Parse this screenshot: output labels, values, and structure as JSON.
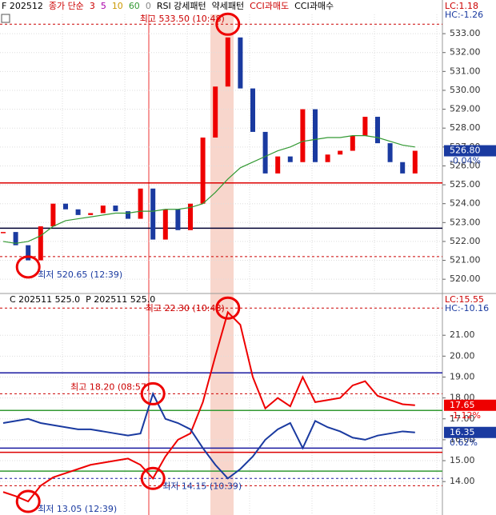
{
  "chart_data": [
    {
      "type": "candle",
      "header": [
        "F 202512",
        "종가 단순",
        "3",
        "5",
        "10",
        "60",
        "0",
        "RSI 강세패턴",
        "약세패턴",
        "CCI과매도",
        "CCI과매수"
      ],
      "header_colors": [
        "#000",
        "#c00",
        "#c00",
        "#a0a",
        "#c90",
        "#393",
        "#888",
        "#000",
        "#000",
        "#c00",
        "#000"
      ],
      "corner": [
        "LC:1.18",
        "HC:-1.26"
      ],
      "ylim": [
        519.33,
        534.02
      ],
      "yticks": [
        {
          "value": 520,
          "label": "520.00"
        },
        {
          "value": 521,
          "label": "521.00"
        },
        {
          "value": 522,
          "label": "522.00"
        },
        {
          "value": 523,
          "label": "523.00"
        },
        {
          "value": 524,
          "label": "524.00"
        },
        {
          "value": 525,
          "label": "525.00"
        },
        {
          "value": 526,
          "label": "526.00"
        },
        {
          "value": 527,
          "label": "527.00"
        },
        {
          "value": 528,
          "label": "528.00"
        },
        {
          "value": 529,
          "label": "529.00"
        },
        {
          "value": 530,
          "label": "530.00"
        },
        {
          "value": 531,
          "label": "531.00"
        },
        {
          "value": 532,
          "label": "532.00"
        },
        {
          "value": 533,
          "label": "533.00"
        }
      ],
      "hlines": [
        {
          "value": 533.5,
          "color": "#c00",
          "dash": true
        },
        {
          "value": 525.1,
          "color": "#d00",
          "dash": false
        },
        {
          "value": 522.7,
          "color": "#003",
          "dash": false
        },
        {
          "value": 521.2,
          "color": "#c00",
          "dash": true
        }
      ],
      "series": [
        {
          "name": "종가",
          "color": "#e00",
          "down_color": "#1a3aa0",
          "values": [
            522.5,
            521.8,
            521.0,
            522.8,
            524.0,
            523.7,
            523.4,
            523.5,
            523.9,
            523.6,
            523.2,
            524.8,
            522.1,
            523.7,
            522.6,
            524.0,
            527.5,
            530.2,
            532.8,
            530.1,
            527.8,
            525.6,
            526.5,
            526.2,
            529.0,
            526.2,
            526.6,
            526.8,
            527.6,
            528.6,
            527.2,
            526.2,
            525.6,
            526.8
          ]
        },
        {
          "name": "60",
          "color": "#393",
          "values": [
            522.0,
            521.9,
            522.0,
            522.3,
            522.8,
            523.1,
            523.2,
            523.3,
            523.4,
            523.5,
            523.5,
            523.6,
            523.6,
            523.7,
            523.7,
            523.8,
            524.0,
            524.6,
            525.3,
            525.9,
            526.2,
            526.5,
            526.8,
            527.0,
            527.3,
            527.4,
            527.5,
            527.5,
            527.6,
            527.6,
            527.5,
            527.3,
            527.1,
            527.0
          ]
        }
      ],
      "annotations": [
        {
          "text": "최고 533.50 (10:48)",
          "index": 18,
          "value": 533.5
        },
        {
          "text": "최저 520.65 (12:39)",
          "index": 2,
          "value": 520.65
        }
      ],
      "tags": [
        {
          "value": 526.8,
          "label": "526.80",
          "sub": "-0.04%",
          "color": "#1a3aa0"
        }
      ]
    },
    {
      "type": "line",
      "header": [
        "C 202511 525.0",
        "P 202511 525.0"
      ],
      "header_colors": [
        "#000",
        "#000"
      ],
      "corner": [
        "LC:15.55",
        "HC:-10.16"
      ],
      "ylim": [
        12.4,
        22.5
      ],
      "yticks": [
        {
          "value": 14,
          "label": "14.00"
        },
        {
          "value": 15,
          "label": "15.00"
        },
        {
          "value": 16,
          "label": "16.00"
        },
        {
          "value": 17,
          "label": "17.00"
        },
        {
          "value": 18,
          "label": "18.00"
        },
        {
          "value": 19,
          "label": "19.00"
        },
        {
          "value": 20,
          "label": "20.00"
        },
        {
          "value": 21,
          "label": "21.00"
        }
      ],
      "hlines": [
        {
          "value": 22.3,
          "color": "#c00",
          "dash": true
        },
        {
          "value": 19.2,
          "color": "#1a1aa0",
          "dash": false
        },
        {
          "value": 18.2,
          "color": "#c00",
          "dash": true
        },
        {
          "value": 17.4,
          "color": "#393",
          "dash": false
        },
        {
          "value": 15.6,
          "color": "#1a1aa0",
          "dash": false
        },
        {
          "value": 15.4,
          "color": "#d00",
          "dash": false
        },
        {
          "value": 14.5,
          "color": "#393",
          "dash": false
        },
        {
          "value": 14.15,
          "color": "#1a1aa0",
          "dash": true
        },
        {
          "value": 13.8,
          "color": "#c00",
          "dash": true
        }
      ],
      "series": [
        {
          "name": "C 202511 525.0",
          "color": "#e00",
          "values": [
            13.5,
            13.3,
            13.05,
            13.8,
            14.2,
            14.4,
            14.6,
            14.8,
            14.9,
            15.0,
            15.1,
            14.8,
            14.15,
            15.2,
            16.0,
            16.3,
            17.8,
            20.0,
            22.1,
            21.5,
            19.0,
            17.5,
            18.0,
            17.6,
            19.0,
            17.8,
            17.9,
            18.0,
            18.6,
            18.8,
            18.1,
            17.9,
            17.7,
            17.65
          ]
        },
        {
          "name": "P 202511 525.0",
          "color": "#1a3aa0",
          "values": [
            16.8,
            16.9,
            17.0,
            16.8,
            16.7,
            16.6,
            16.5,
            16.5,
            16.4,
            16.3,
            16.2,
            16.3,
            18.2,
            17.0,
            16.8,
            16.5,
            15.6,
            14.8,
            14.15,
            14.6,
            15.2,
            16.0,
            16.5,
            16.8,
            15.6,
            16.9,
            16.6,
            16.4,
            16.1,
            16.0,
            16.2,
            16.3,
            16.4,
            16.35
          ]
        }
      ],
      "annotations": [
        {
          "text": "최고 22.30 (10:48)",
          "index": 18,
          "value": 22.3
        },
        {
          "text": "최고 18.20 (08:57)",
          "index": 12,
          "value": 18.2
        },
        {
          "text": "최저 13.05 (12:39)",
          "index": 2,
          "value": 13.05
        },
        {
          "text": "최저 14.15 (10:39)",
          "index": 12,
          "value": 14.15
        }
      ],
      "tags": [
        {
          "value": 17.65,
          "label": "17.65",
          "sub": "-1.12%",
          "color": "#e00"
        },
        {
          "value": 16.35,
          "label": "16.35",
          "sub": "0.62%",
          "color": "#1a3aa0"
        }
      ]
    }
  ]
}
